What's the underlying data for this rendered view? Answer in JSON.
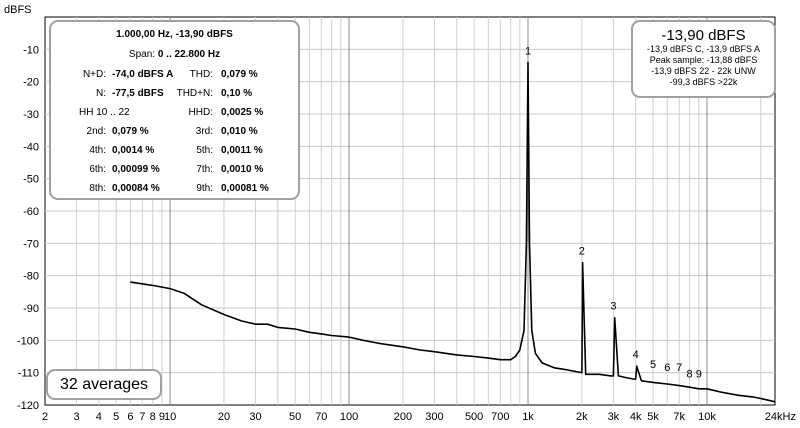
{
  "chart_data": {
    "type": "line",
    "ylabel": "dBFS",
    "x_scale": "log",
    "xlim": [
      2,
      24000
    ],
    "ylim": [
      -120,
      0
    ],
    "y_ticks": [
      "-10",
      "-20",
      "-30",
      "-40",
      "-50",
      "-60",
      "-70",
      "-80",
      "-90",
      "-100",
      "-110",
      "-120"
    ],
    "x_tick_labels": [
      {
        "v": 2,
        "t": "2"
      },
      {
        "v": 3,
        "t": "3"
      },
      {
        "v": 4,
        "t": "4"
      },
      {
        "v": 5,
        "t": "5"
      },
      {
        "v": 6,
        "t": "6"
      },
      {
        "v": 7,
        "t": "7"
      },
      {
        "v": 8,
        "t": "8"
      },
      {
        "v": 9,
        "t": "9"
      },
      {
        "v": 10,
        "t": "10"
      },
      {
        "v": 20,
        "t": "20"
      },
      {
        "v": 30,
        "t": "30"
      },
      {
        "v": 50,
        "t": "50"
      },
      {
        "v": 70,
        "t": "70"
      },
      {
        "v": 100,
        "t": "100"
      },
      {
        "v": 200,
        "t": "200"
      },
      {
        "v": 300,
        "t": "300"
      },
      {
        "v": 500,
        "t": "500"
      },
      {
        "v": 700,
        "t": "700"
      },
      {
        "v": 1000,
        "t": "1k"
      },
      {
        "v": 2000,
        "t": "2k"
      },
      {
        "v": 3000,
        "t": "3k"
      },
      {
        "v": 4000,
        "t": "4k"
      },
      {
        "v": 5000,
        "t": "5k"
      },
      {
        "v": 7000,
        "t": "7k"
      },
      {
        "v": 10000,
        "t": "10k"
      },
      {
        "v": 24000,
        "t": "24kHz"
      }
    ],
    "grid": true,
    "series": [
      {
        "color": "#000000",
        "x": [
          6,
          8,
          10,
          12,
          15,
          20,
          25,
          30,
          35,
          40,
          50,
          60,
          70,
          80,
          100,
          120,
          150,
          200,
          250,
          300,
          400,
          500,
          600,
          700,
          800,
          850,
          900,
          950,
          980,
          1000,
          1020,
          1050,
          1100,
          1200,
          1400,
          1600,
          1800,
          2000,
          2020,
          2100,
          2500,
          2900,
          3000,
          3050,
          3200,
          3500,
          3900,
          4000,
          4050,
          4300,
          5000,
          6000,
          7000,
          8000,
          9000,
          10000,
          12000,
          15000,
          18000,
          20000,
          22000,
          24000
        ],
        "y": [
          -82,
          -83,
          -84,
          -85.5,
          -89,
          -92,
          -94,
          -95,
          -95,
          -96,
          -96.5,
          -97.5,
          -98,
          -98.5,
          -99,
          -100,
          -101,
          -102,
          -103,
          -103.5,
          -104.5,
          -105,
          -105.5,
          -106,
          -106,
          -105,
          -103,
          -97,
          -70,
          -14,
          -70,
          -97,
          -104,
          -107,
          -108.5,
          -109,
          -109.5,
          -110,
          -76,
          -110.5,
          -110.5,
          -111,
          -111,
          -93,
          -111,
          -111.5,
          -112,
          -112,
          -108,
          -112.5,
          -113,
          -113.5,
          -114,
          -114.5,
          -115,
          -115,
          -116,
          -117,
          -117.5,
          -118,
          -118.5,
          -119
        ]
      }
    ],
    "harmonic_markers": [
      {
        "label": "1",
        "x": 1000,
        "y": -14
      },
      {
        "label": "2",
        "x": 2000,
        "y": -76
      },
      {
        "label": "3",
        "x": 3000,
        "y": -93
      },
      {
        "label": "4",
        "x": 4000,
        "y": -108
      },
      {
        "label": "5",
        "x": 5000,
        "y": -111
      },
      {
        "label": "6",
        "x": 6000,
        "y": -112
      },
      {
        "label": "7",
        "x": 7000,
        "y": -112
      },
      {
        "label": "8",
        "x": 8000,
        "y": -114
      },
      {
        "label": "9",
        "x": 9000,
        "y": -114
      }
    ]
  },
  "stats_panel": {
    "header": "1.000,00 Hz, -13,90 dBFS",
    "span_label": "Span:",
    "span_value": "0 .. 22.800 Hz",
    "rows": [
      {
        "l1": "N+D:",
        "v1": "-74,0 dBFS A",
        "l2": "THD:",
        "v2": "0,079 %"
      },
      {
        "l1": "N:",
        "v1": "-77,5 dBFS",
        "l2": "THD+N:",
        "v2": "0,10 %"
      },
      {
        "l1": "",
        "v1": "HH 10 .. 22",
        "l2": "HHD:",
        "v2": "0,0025 %"
      },
      {
        "l1": "2nd:",
        "v1": "0,079 %",
        "l2": "3rd:",
        "v2": "0,010 %"
      },
      {
        "l1": "4th:",
        "v1": "0,0014 %",
        "l2": "5th:",
        "v2": "0,0011 %"
      },
      {
        "l1": "6th:",
        "v1": "0,00099 %",
        "l2": "7th:",
        "v2": "0,0010 %"
      },
      {
        "l1": "8th:",
        "v1": "0,00084 %",
        "l2": "9th:",
        "v2": "0,00081 %"
      }
    ]
  },
  "level_panel": {
    "value": "-13,90 dBFS",
    "lines": [
      "-13,9 dBFS C, -13,9 dBFS A",
      "Peak sample: -13,88 dBFS",
      "-13,9 dBFS 22 - 22k UNW",
      "-99,3 dBFS >22k"
    ]
  },
  "averages_badge": {
    "label": "32 averages"
  }
}
